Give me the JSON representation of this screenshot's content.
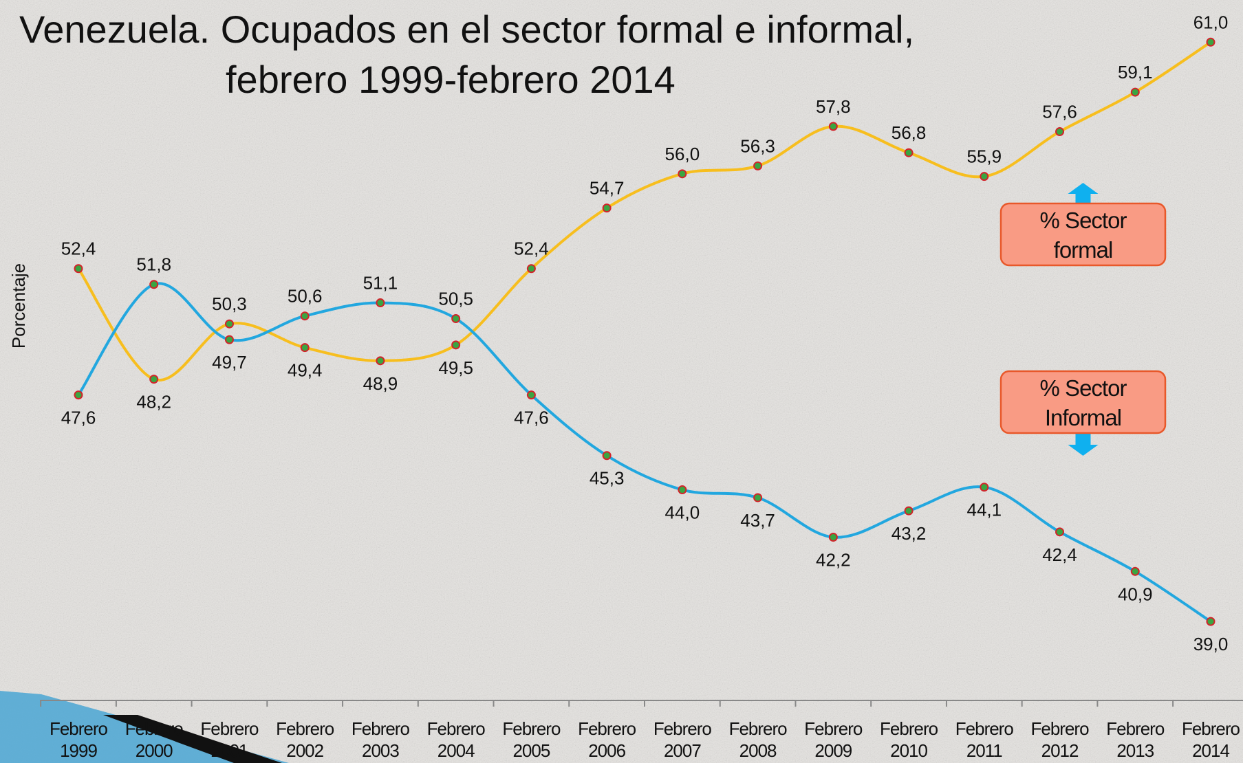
{
  "chart_data": {
    "type": "line",
    "title_lines": [
      "Venezuela. Ocupados en el sector formal e informal,",
      "febrero 1999-febrero 2014"
    ],
    "ylabel": "Porcentaje",
    "categories": [
      "Febrero 1999",
      "Febrero 2000",
      "Febrero 2001",
      "Febrero 2002",
      "Febrero 2003",
      "Febrero 2004",
      "Febrero 2005",
      "Febrero 2006",
      "Febrero 2007",
      "Febrero 2008",
      "Febrero 2009",
      "Febrero 2010",
      "Febrero 2011",
      "Febrero 2012",
      "Febrero 2013",
      "Febrero 2014"
    ],
    "ylim": [
      36,
      62.6
    ],
    "series": [
      {
        "name": "% Sector formal",
        "color": "#f7be1e",
        "values": [
          52.4,
          48.2,
          50.3,
          49.4,
          48.9,
          49.5,
          52.4,
          54.7,
          56.0,
          56.3,
          57.8,
          56.8,
          55.9,
          57.6,
          59.1,
          61.0
        ],
        "value_labels": [
          "52,4",
          "48,2",
          "50,3",
          "49,4",
          "48,9",
          "49,5",
          "52,4",
          "54,7",
          "56,0",
          "56,3",
          "57,8",
          "56,8",
          "55,9",
          "57,6",
          "59,1",
          "61,0"
        ]
      },
      {
        "name": "% Sector Informal",
        "color": "#22a7df",
        "values": [
          47.6,
          51.8,
          49.7,
          50.6,
          51.1,
          50.5,
          47.6,
          45.3,
          44.0,
          43.7,
          42.2,
          43.2,
          44.1,
          42.4,
          40.9,
          39.0
        ],
        "value_labels": [
          "47,6",
          "51,8",
          "49,7",
          "50,6",
          "51,1",
          "50,5",
          "47,6",
          "45,3",
          "44,0",
          "43,7",
          "42,2",
          "43,2",
          "44,1",
          "42,4",
          "40,9",
          "39,0"
        ]
      }
    ]
  }
}
